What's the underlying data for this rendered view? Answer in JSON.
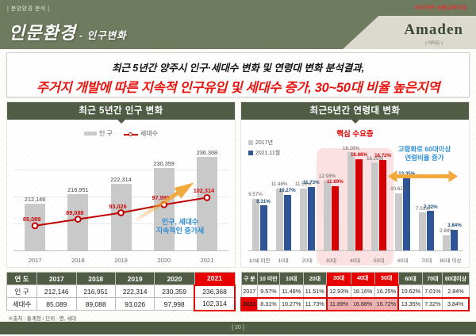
{
  "header": {
    "tag": "| 분양환경 분석 |",
    "title_main": "인문환경",
    "title_sub": "- 인구변화",
    "corner_note": "어마어든 상품교육자료",
    "logo": "Amaden",
    "logo_sub": "( 아마든 )"
  },
  "headline": {
    "line1": "최근 5년간 양주시 인구·세대수 변화 및 연령대 변화 분석결과,",
    "line2": "주거지 개발에 따른 지속적 인구유입 및 세대수 증가, 30~50대 비율 높은지역"
  },
  "chart_data": [
    {
      "type": "bar",
      "title": "최근 5년간 인구 변화",
      "categories": [
        "2017",
        "2018",
        "2019",
        "2020",
        "2021"
      ],
      "series": [
        {
          "name": "인 구",
          "type": "bar",
          "color": "#c9c9c9",
          "values": [
            212146,
            216951,
            222314,
            230359,
            236368
          ],
          "labels": [
            "212,146",
            "216,951",
            "222,314",
            "230,359",
            "236,368"
          ]
        },
        {
          "name": "세대수",
          "type": "line",
          "color": "#c00000",
          "values": [
            85089,
            89088,
            93026,
            97998,
            102314
          ],
          "labels": [
            "85,089",
            "89,088",
            "93,026",
            "97,998",
            "102,314"
          ]
        }
      ],
      "annotation_lines": [
        "인구, 세대수",
        "지속적인 증가세"
      ],
      "ylim": [
        190000,
        240000
      ],
      "grid": true,
      "legend_position": "top"
    },
    {
      "type": "bar",
      "title": "최근5년간 연령대 변화",
      "categories": [
        "10세 미만",
        "10대",
        "20대",
        "30대",
        "40대",
        "50대",
        "60대",
        "70대",
        "80대 이상"
      ],
      "series": [
        {
          "name": "2017년",
          "color": "#c9c9c9",
          "values": [
            9.57,
            11.48,
            11.51,
            12.93,
            18.16,
            16.25,
            10.62,
            7.01,
            2.84
          ]
        },
        {
          "name": "2021.11월",
          "color": "#2f5597",
          "highlight_color": "#d40000",
          "values": [
            8.31,
            10.27,
            11.73,
            11.89,
            16.88,
            16.72,
            13.35,
            7.32,
            3.84
          ]
        }
      ],
      "highlight": {
        "label": "핵심 수요층",
        "start": 3,
        "end": 5
      },
      "annotation_lines": [
        "고령화로 60대이상",
        "연령비율 증가"
      ],
      "ylim": [
        0,
        19.5
      ],
      "grid": false,
      "legend_position": "top-left"
    }
  ],
  "tables": [
    {
      "header": [
        "연 도",
        "2017",
        "2018",
        "2019",
        "2020",
        "2021"
      ],
      "rows": [
        [
          "인 구",
          "212,146",
          "216,951",
          "222,314",
          "230,359",
          "236,368"
        ],
        [
          "세대수",
          "85,089",
          "89,088",
          "93,026",
          "97,998",
          "102,314"
        ]
      ],
      "hl_head_cols": [
        5
      ],
      "col_outline": [
        5,
        5
      ]
    },
    {
      "header": [
        "구 분",
        "10 미만",
        "10대",
        "20대",
        "30대",
        "40대",
        "50대",
        "60대",
        "70대",
        "80대이상"
      ],
      "rows": [
        [
          "2017",
          "9.57%",
          "11.48%",
          "11.51%",
          "12.93%",
          "18.16%",
          "16.25%",
          "10.62%",
          "7.01%",
          "2.84%"
        ],
        [
          "2021",
          "8.31%",
          "10.27%",
          "11.73%",
          "11.89%",
          "16.88%",
          "16.72%",
          "13.35%",
          "7.32%",
          "3.84%"
        ]
      ],
      "hl_head_cols": [
        4,
        5,
        6
      ],
      "col_outline": [
        4,
        6
      ],
      "hl_row": 1,
      "pink_row": 1,
      "pink_cols": [
        4,
        5,
        6
      ]
    }
  ],
  "footnote": "※출처 : 통계청 / 단위 : 명, 세대",
  "page_number": "[ 20 ]"
}
